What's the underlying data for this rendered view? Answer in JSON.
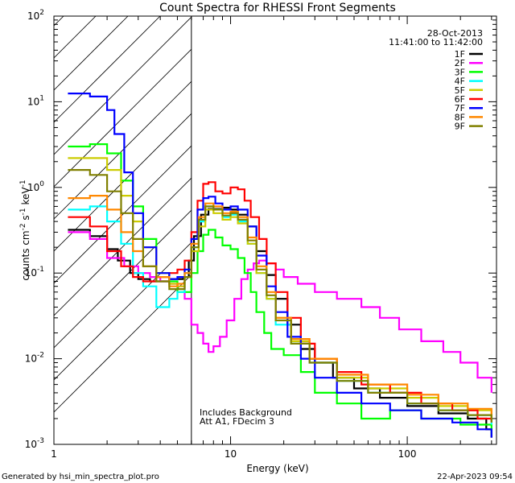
{
  "chart_data": {
    "type": "line",
    "title": "Count Spectra for RHESSI Front Segments",
    "xlabel": "Energy (keV)",
    "ylabel_parts": [
      "counts cm",
      "-2",
      " s",
      "-1",
      " keV",
      "-1"
    ],
    "x_scale": "log",
    "y_scale": "log",
    "xlim": [
      1,
      320
    ],
    "ylim": [
      0.001,
      100
    ],
    "x_ticks": [
      {
        "value": 1,
        "label": "1"
      },
      {
        "value": 10,
        "label": "10"
      },
      {
        "value": 100,
        "label": "100"
      }
    ],
    "y_ticks": [
      {
        "value": 0.001,
        "base": "10",
        "exp": "-3"
      },
      {
        "value": 0.01,
        "base": "10",
        "exp": "-2"
      },
      {
        "value": 0.1,
        "base": "10",
        "exp": "-1"
      },
      {
        "value": 1,
        "base": "10",
        "exp": "0"
      },
      {
        "value": 10,
        "base": "10",
        "exp": "1"
      },
      {
        "value": 100,
        "base": "10",
        "exp": "2"
      }
    ],
    "hatched_region_kev": [
      1,
      6
    ],
    "annotation_lines": [
      "Includes Background",
      "Att A1, FDecim 3"
    ],
    "legend_header": [
      "28-Oct-2013",
      "11:41:00 to 11:42:00"
    ],
    "legend_position": "top-right",
    "series": [
      {
        "name": "1F",
        "color": "#000000",
        "points": [
          [
            1.2,
            0.32
          ],
          [
            1.6,
            0.27
          ],
          [
            2.0,
            0.19
          ],
          [
            2.3,
            0.14
          ],
          [
            2.7,
            0.1
          ],
          [
            3.0,
            0.085
          ],
          [
            3.5,
            0.08
          ],
          [
            4.0,
            0.08
          ],
          [
            4.5,
            0.085
          ],
          [
            5.0,
            0.085
          ],
          [
            5.4,
            0.09
          ],
          [
            5.8,
            0.14
          ],
          [
            6.2,
            0.27
          ],
          [
            6.8,
            0.48
          ],
          [
            7.5,
            0.56
          ],
          [
            8.2,
            0.56
          ],
          [
            9.0,
            0.58
          ],
          [
            10.0,
            0.55
          ],
          [
            11.0,
            0.48
          ],
          [
            12.5,
            0.35
          ],
          [
            14.0,
            0.18
          ],
          [
            16.0,
            0.095
          ],
          [
            18.0,
            0.05
          ],
          [
            21.0,
            0.025
          ],
          [
            25.0,
            0.013
          ],
          [
            30.0,
            0.009
          ],
          [
            38.0,
            0.006
          ],
          [
            50.0,
            0.0045
          ],
          [
            70.0,
            0.0035
          ],
          [
            100.0,
            0.0028
          ],
          [
            150.0,
            0.0023
          ],
          [
            220.0,
            0.002
          ],
          [
            280.0,
            0.0015
          ],
          [
            300.0,
            0.0012
          ]
        ]
      },
      {
        "name": "2F",
        "color": "#ff00ff",
        "points": [
          [
            1.2,
            0.3
          ],
          [
            1.6,
            0.25
          ],
          [
            2.0,
            0.15
          ],
          [
            2.5,
            0.12
          ],
          [
            3.0,
            0.1
          ],
          [
            3.5,
            0.09
          ],
          [
            4.0,
            0.08
          ],
          [
            4.5,
            0.075
          ],
          [
            5.0,
            0.07
          ],
          [
            5.5,
            0.05
          ],
          [
            6.0,
            0.025
          ],
          [
            6.5,
            0.02
          ],
          [
            7.0,
            0.015
          ],
          [
            7.5,
            0.012
          ],
          [
            8.0,
            0.014
          ],
          [
            8.7,
            0.018
          ],
          [
            9.5,
            0.028
          ],
          [
            10.5,
            0.05
          ],
          [
            11.5,
            0.085
          ],
          [
            12.5,
            0.11
          ],
          [
            13.5,
            0.13
          ],
          [
            14.5,
            0.14
          ],
          [
            16.0,
            0.13
          ],
          [
            18.0,
            0.11
          ],
          [
            20.0,
            0.09
          ],
          [
            24.0,
            0.075
          ],
          [
            30.0,
            0.06
          ],
          [
            40.0,
            0.05
          ],
          [
            55.0,
            0.04
          ],
          [
            70.0,
            0.03
          ],
          [
            90.0,
            0.022
          ],
          [
            120.0,
            0.016
          ],
          [
            160.0,
            0.012
          ],
          [
            200.0,
            0.009
          ],
          [
            250.0,
            0.006
          ],
          [
            300.0,
            0.004
          ]
        ]
      },
      {
        "name": "3F",
        "color": "#00ff00",
        "points": [
          [
            1.2,
            3.0
          ],
          [
            1.6,
            3.2
          ],
          [
            2.0,
            2.5
          ],
          [
            2.4,
            1.2
          ],
          [
            2.8,
            0.6
          ],
          [
            3.2,
            0.25
          ],
          [
            3.8,
            0.1
          ],
          [
            4.5,
            0.08
          ],
          [
            5.0,
            0.06
          ],
          [
            5.5,
            0.06
          ],
          [
            6.0,
            0.1
          ],
          [
            6.5,
            0.18
          ],
          [
            7.0,
            0.28
          ],
          [
            7.5,
            0.32
          ],
          [
            8.2,
            0.26
          ],
          [
            9.0,
            0.21
          ],
          [
            10.0,
            0.19
          ],
          [
            11.0,
            0.15
          ],
          [
            12.0,
            0.1
          ],
          [
            13.0,
            0.06
          ],
          [
            14.0,
            0.035
          ],
          [
            15.5,
            0.02
          ],
          [
            17.0,
            0.013
          ],
          [
            20.0,
            0.011
          ],
          [
            25.0,
            0.007
          ],
          [
            30.0,
            0.004
          ],
          [
            40.0,
            0.003
          ],
          [
            55.0,
            0.002
          ],
          [
            80.0,
            0.0025
          ],
          [
            120.0,
            0.002
          ],
          [
            200.0,
            0.0017
          ],
          [
            300.0,
            0.0013
          ]
        ]
      },
      {
        "name": "4F",
        "color": "#00ffff",
        "points": [
          [
            1.2,
            0.55
          ],
          [
            1.6,
            0.6
          ],
          [
            2.0,
            0.4
          ],
          [
            2.4,
            0.22
          ],
          [
            2.8,
            0.1
          ],
          [
            3.2,
            0.07
          ],
          [
            3.8,
            0.04
          ],
          [
            4.5,
            0.05
          ],
          [
            5.0,
            0.06
          ],
          [
            5.5,
            0.1
          ],
          [
            6.0,
            0.2
          ],
          [
            6.6,
            0.4
          ],
          [
            7.2,
            0.6
          ],
          [
            8.0,
            0.55
          ],
          [
            9.0,
            0.45
          ],
          [
            10.0,
            0.48
          ],
          [
            11.0,
            0.4
          ],
          [
            12.5,
            0.22
          ],
          [
            14.0,
            0.1
          ],
          [
            16.0,
            0.05
          ],
          [
            18.0,
            0.025
          ],
          [
            22.0,
            0.015
          ],
          [
            28.0,
            0.009
          ],
          [
            40.0,
            0.0055
          ],
          [
            60.0,
            0.004
          ],
          [
            100.0,
            0.003
          ],
          [
            150.0,
            0.0025
          ],
          [
            220.0,
            0.0022
          ],
          [
            300.0,
            0.0017
          ]
        ]
      },
      {
        "name": "5F",
        "color": "#cccc00",
        "points": [
          [
            1.2,
            2.2
          ],
          [
            1.6,
            2.2
          ],
          [
            2.0,
            1.6
          ],
          [
            2.4,
            0.8
          ],
          [
            2.8,
            0.4
          ],
          [
            3.2,
            0.2
          ],
          [
            3.8,
            0.1
          ],
          [
            4.5,
            0.075
          ],
          [
            5.0,
            0.07
          ],
          [
            5.5,
            0.09
          ],
          [
            6.0,
            0.18
          ],
          [
            6.6,
            0.35
          ],
          [
            7.2,
            0.55
          ],
          [
            8.0,
            0.5
          ],
          [
            9.0,
            0.42
          ],
          [
            10.0,
            0.45
          ],
          [
            11.0,
            0.38
          ],
          [
            12.5,
            0.22
          ],
          [
            14.0,
            0.1
          ],
          [
            16.0,
            0.05
          ],
          [
            18.0,
            0.03
          ],
          [
            22.0,
            0.016
          ],
          [
            28.0,
            0.01
          ],
          [
            40.0,
            0.006
          ],
          [
            60.0,
            0.0045
          ],
          [
            100.0,
            0.0035
          ],
          [
            150.0,
            0.0028
          ],
          [
            220.0,
            0.0025
          ],
          [
            300.0,
            0.002
          ]
        ]
      },
      {
        "name": "6F",
        "color": "#ff0000",
        "points": [
          [
            1.2,
            0.45
          ],
          [
            1.6,
            0.35
          ],
          [
            2.0,
            0.18
          ],
          [
            2.4,
            0.12
          ],
          [
            2.8,
            0.09
          ],
          [
            3.2,
            0.08
          ],
          [
            3.8,
            0.09
          ],
          [
            4.5,
            0.1
          ],
          [
            5.0,
            0.11
          ],
          [
            5.5,
            0.14
          ],
          [
            6.0,
            0.3
          ],
          [
            6.5,
            0.7
          ],
          [
            7.0,
            1.1
          ],
          [
            7.5,
            1.15
          ],
          [
            8.2,
            0.9
          ],
          [
            9.0,
            0.85
          ],
          [
            10.0,
            1.0
          ],
          [
            11.0,
            0.95
          ],
          [
            12.0,
            0.7
          ],
          [
            13.0,
            0.45
          ],
          [
            14.5,
            0.25
          ],
          [
            16.0,
            0.13
          ],
          [
            18.0,
            0.06
          ],
          [
            21.0,
            0.03
          ],
          [
            25.0,
            0.015
          ],
          [
            30.0,
            0.01
          ],
          [
            40.0,
            0.007
          ],
          [
            55.0,
            0.005
          ],
          [
            80.0,
            0.004
          ],
          [
            120.0,
            0.003
          ],
          [
            180.0,
            0.0025
          ],
          [
            250.0,
            0.002
          ],
          [
            300.0,
            0.0018
          ]
        ]
      },
      {
        "name": "7F",
        "color": "#0000ff",
        "points": [
          [
            1.2,
            12.5
          ],
          [
            1.6,
            11.5
          ],
          [
            2.0,
            8.0
          ],
          [
            2.2,
            4.2
          ],
          [
            2.5,
            1.5
          ],
          [
            2.8,
            0.5
          ],
          [
            3.2,
            0.2
          ],
          [
            3.8,
            0.1
          ],
          [
            4.5,
            0.085
          ],
          [
            5.0,
            0.09
          ],
          [
            5.5,
            0.11
          ],
          [
            6.0,
            0.25
          ],
          [
            6.5,
            0.55
          ],
          [
            7.0,
            0.75
          ],
          [
            7.5,
            0.78
          ],
          [
            8.2,
            0.65
          ],
          [
            9.0,
            0.55
          ],
          [
            10.0,
            0.6
          ],
          [
            11.0,
            0.55
          ],
          [
            12.5,
            0.35
          ],
          [
            14.0,
            0.16
          ],
          [
            16.0,
            0.07
          ],
          [
            18.0,
            0.035
          ],
          [
            21.0,
            0.018
          ],
          [
            25.0,
            0.01
          ],
          [
            30.0,
            0.006
          ],
          [
            40.0,
            0.004
          ],
          [
            55.0,
            0.003
          ],
          [
            80.0,
            0.0025
          ],
          [
            120.0,
            0.002
          ],
          [
            180.0,
            0.0018
          ],
          [
            250.0,
            0.0015
          ],
          [
            300.0,
            0.0012
          ]
        ]
      },
      {
        "name": "8F",
        "color": "#ff8800",
        "points": [
          [
            1.2,
            0.75
          ],
          [
            1.6,
            0.8
          ],
          [
            2.0,
            0.55
          ],
          [
            2.4,
            0.3
          ],
          [
            2.8,
            0.18
          ],
          [
            3.2,
            0.12
          ],
          [
            3.8,
            0.09
          ],
          [
            4.5,
            0.07
          ],
          [
            5.0,
            0.075
          ],
          [
            5.5,
            0.1
          ],
          [
            6.0,
            0.22
          ],
          [
            6.6,
            0.45
          ],
          [
            7.2,
            0.65
          ],
          [
            8.0,
            0.6
          ],
          [
            9.0,
            0.5
          ],
          [
            10.0,
            0.52
          ],
          [
            11.0,
            0.45
          ],
          [
            12.5,
            0.26
          ],
          [
            14.0,
            0.12
          ],
          [
            16.0,
            0.06
          ],
          [
            18.0,
            0.03
          ],
          [
            22.0,
            0.017
          ],
          [
            28.0,
            0.01
          ],
          [
            40.0,
            0.0065
          ],
          [
            60.0,
            0.005
          ],
          [
            100.0,
            0.0038
          ],
          [
            150.0,
            0.003
          ],
          [
            220.0,
            0.0026
          ],
          [
            300.0,
            0.0021
          ]
        ]
      },
      {
        "name": "9F",
        "color": "#808000",
        "points": [
          [
            1.2,
            1.6
          ],
          [
            1.6,
            1.4
          ],
          [
            2.0,
            0.9
          ],
          [
            2.4,
            0.5
          ],
          [
            2.8,
            0.25
          ],
          [
            3.2,
            0.12
          ],
          [
            3.8,
            0.08
          ],
          [
            4.5,
            0.065
          ],
          [
            5.0,
            0.065
          ],
          [
            5.5,
            0.09
          ],
          [
            6.0,
            0.2
          ],
          [
            6.6,
            0.42
          ],
          [
            7.2,
            0.6
          ],
          [
            8.0,
            0.55
          ],
          [
            9.0,
            0.47
          ],
          [
            10.0,
            0.5
          ],
          [
            11.0,
            0.42
          ],
          [
            12.5,
            0.24
          ],
          [
            14.0,
            0.11
          ],
          [
            16.0,
            0.055
          ],
          [
            18.0,
            0.028
          ],
          [
            22.0,
            0.015
          ],
          [
            28.0,
            0.009
          ],
          [
            40.0,
            0.0055
          ],
          [
            60.0,
            0.004
          ],
          [
            100.0,
            0.003
          ],
          [
            150.0,
            0.0025
          ],
          [
            220.0,
            0.0022
          ],
          [
            300.0,
            0.0018
          ]
        ]
      }
    ]
  },
  "footer": {
    "left": "Generated by hsi_min_spectra_plot.pro",
    "right": "22-Apr-2023 09:54"
  }
}
